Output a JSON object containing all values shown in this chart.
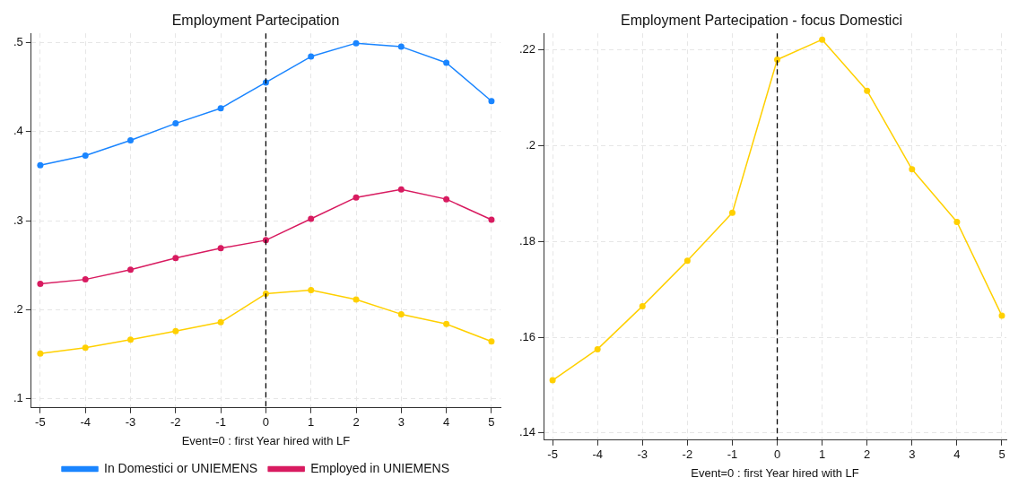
{
  "chart_data": [
    {
      "type": "line",
      "title": "Employment Partecipation",
      "xlabel": "Event=0 : first Year hired with LF",
      "x": [
        -5,
        -4,
        -3,
        -2,
        -1,
        0,
        1,
        2,
        3,
        4,
        5
      ],
      "series": [
        {
          "name": "In Domestici or UNIEMENS",
          "color": "#1a85ff",
          "values": [
            0.362,
            0.373,
            0.39,
            0.409,
            0.426,
            0.455,
            0.484,
            0.499,
            0.495,
            0.477,
            0.434
          ]
        },
        {
          "name": "Employed in UNIEMENS",
          "color": "#d81b60",
          "values": [
            0.229,
            0.234,
            0.245,
            0.258,
            0.269,
            0.278,
            0.302,
            0.326,
            0.335,
            0.324,
            0.301
          ]
        },
        {
          "color": "#ffd000",
          "values": [
            0.151,
            0.1575,
            0.1665,
            0.176,
            0.186,
            0.218,
            0.222,
            0.2115,
            0.195,
            0.184,
            0.1645
          ]
        }
      ],
      "xlim": [
        -5.2,
        5.2
      ],
      "xticks": [
        -5,
        -4,
        -3,
        -2,
        -1,
        0,
        1,
        2,
        3,
        4,
        5
      ],
      "ylim": [
        0.09,
        0.51
      ],
      "yticks": [
        {
          "value": 0.1,
          "label": ".1"
        },
        {
          "value": 0.2,
          "label": ".2"
        },
        {
          "value": 0.3,
          "label": ".3"
        },
        {
          "value": 0.4,
          "label": ".4"
        },
        {
          "value": 0.5,
          "label": ".5"
        }
      ],
      "grid": true,
      "legend": "bottom",
      "marker": "circle",
      "ref_lines": [
        {
          "axis": "x",
          "value": 0,
          "color": "#000000",
          "line_style": "dashed"
        }
      ]
    },
    {
      "type": "line",
      "title": "Employment Partecipation - focus Domestici",
      "xlabel": "Event=0 : first Year hired with LF",
      "x": [
        -5,
        -4,
        -3,
        -2,
        -1,
        0,
        1,
        2,
        3,
        4,
        5
      ],
      "series": [
        {
          "color": "#ffd000",
          "values": [
            0.151,
            0.1575,
            0.1665,
            0.176,
            0.186,
            0.218,
            0.2222,
            0.2115,
            0.1951,
            0.1841,
            0.1645
          ]
        }
      ],
      "xlim": [
        -5.2,
        5.1
      ],
      "xticks": [
        -5,
        -4,
        -3,
        -2,
        -1,
        0,
        1,
        2,
        3,
        4,
        5
      ],
      "ylim": [
        0.1385,
        0.2235
      ],
      "yticks": [
        {
          "value": 0.14,
          "label": ".14"
        },
        {
          "value": 0.16,
          "label": ".16"
        },
        {
          "value": 0.18,
          "label": ".18"
        },
        {
          "value": 0.2,
          "label": ".2"
        },
        {
          "value": 0.22,
          "label": ".22"
        }
      ],
      "grid": true,
      "legend": false,
      "marker": "circle",
      "ref_lines": [
        {
          "axis": "x",
          "value": 0,
          "color": "#000000",
          "line_style": "dashed"
        }
      ]
    }
  ]
}
